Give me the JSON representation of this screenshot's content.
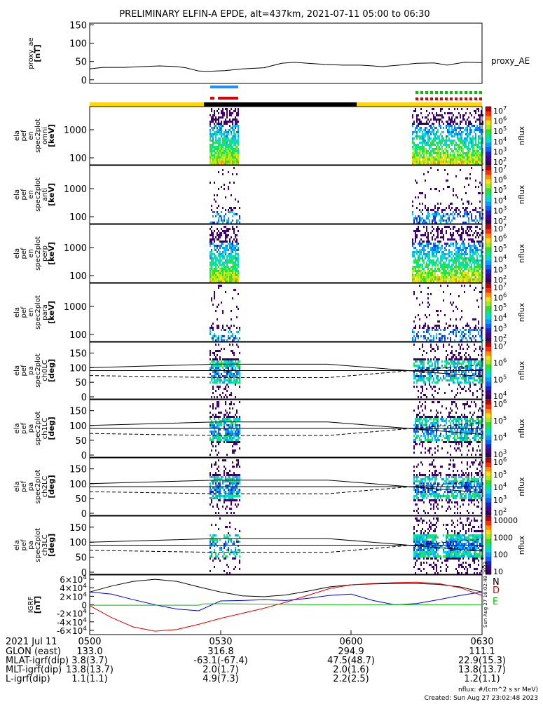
{
  "title": "PRELIMINARY ELFIN-A EPDE, alt=437km, 2021-07-11 05:00 to 06:30",
  "chart_data": [
    {
      "type": "line",
      "id": "proxy_ae",
      "ylabel": [
        "proxy_ae",
        "[nT]"
      ],
      "series_label": "proxy_AE",
      "yticks": [
        "0",
        "50",
        "100",
        "150"
      ],
      "ylim": [
        -10,
        155
      ],
      "xlim": [
        0,
        90
      ],
      "series": [
        {
          "x": [
            0,
            3,
            8,
            12,
            16,
            20,
            22,
            25,
            27,
            31,
            35,
            40,
            44,
            47,
            50,
            54,
            58,
            62,
            65,
            67,
            71,
            75,
            79,
            82,
            86,
            90
          ],
          "y": [
            30,
            34,
            34,
            36,
            38,
            36,
            33,
            24,
            23,
            25,
            30,
            33,
            45,
            48,
            45,
            42,
            40,
            40,
            38,
            36,
            40,
            45,
            46,
            40,
            48,
            47
          ]
        }
      ]
    },
    {
      "type": "heatmap",
      "id": "en_omni",
      "ylabel": [
        "ela",
        "pef",
        "en",
        "spec2plot",
        "omni",
        "[keV]"
      ],
      "yticks": [
        "100",
        "1000"
      ],
      "colorbar_ticks": [
        "10^2",
        "10^3",
        "10^4",
        "10^5",
        "10^6",
        "10^7"
      ],
      "colorbar_label": "nflux"
    },
    {
      "type": "heatmap",
      "id": "en_anti",
      "ylabel": [
        "ela",
        "pef",
        "en",
        "spec2plot",
        "anti",
        "[keV]"
      ],
      "yticks": [
        "100",
        "1000"
      ],
      "colorbar_ticks": [
        "10^2",
        "10^3",
        "10^4",
        "10^5",
        "10^6",
        "10^7"
      ],
      "colorbar_label": "nflux"
    },
    {
      "type": "heatmap",
      "id": "en_perp",
      "ylabel": [
        "ela",
        "pef",
        "en",
        "spec2plot",
        "perp",
        "[keV]"
      ],
      "yticks": [
        "100",
        "1000"
      ],
      "colorbar_ticks": [
        "10^2",
        "10^3",
        "10^4",
        "10^5",
        "10^6",
        "10^7"
      ],
      "colorbar_label": "nflux"
    },
    {
      "type": "heatmap",
      "id": "en_para",
      "ylabel": [
        "ela",
        "pef",
        "en",
        "spec2plot",
        "para",
        "[keV]"
      ],
      "yticks": [
        "100",
        "1000"
      ],
      "colorbar_ticks": [
        "10^2",
        "10^3",
        "10^4",
        "10^5",
        "10^6",
        "10^7"
      ],
      "colorbar_label": "nflux"
    },
    {
      "type": "heatmap",
      "id": "pa_ch0",
      "ylabel": [
        "ela",
        "pef",
        "pa",
        "spec2plot",
        "ch0LC",
        "[deg]"
      ],
      "yticks": [
        "0",
        "50",
        "100",
        "150"
      ],
      "colorbar_ticks": [
        "10^4",
        "10^5",
        "10^6",
        "10^7"
      ],
      "colorbar_label": "nflux"
    },
    {
      "type": "heatmap",
      "id": "pa_ch1",
      "ylabel": [
        "ela",
        "pef",
        "pa",
        "spec2plot",
        "ch1LC",
        "[deg]"
      ],
      "yticks": [
        "0",
        "50",
        "100",
        "150"
      ],
      "colorbar_ticks": [
        "10^3",
        "10^4",
        "10^5",
        "10^6"
      ],
      "colorbar_label": "nflux"
    },
    {
      "type": "heatmap",
      "id": "pa_ch2",
      "ylabel": [
        "ela",
        "pef",
        "pa",
        "spec2plot",
        "ch2LC",
        "[deg]"
      ],
      "yticks": [
        "0",
        "50",
        "100",
        "150"
      ],
      "colorbar_ticks": [
        "10^2",
        "10^3",
        "10^4",
        "10^5",
        "10^6"
      ],
      "colorbar_label": "nflux"
    },
    {
      "type": "heatmap",
      "id": "pa_ch3",
      "ylabel": [
        "ela",
        "pef",
        "pa",
        "spec2plot",
        "ch3LC",
        "[deg]"
      ],
      "yticks": [
        "0",
        "50",
        "100",
        "150"
      ],
      "colorbar_ticks": [
        "10",
        "100",
        "1000",
        "10000"
      ],
      "colorbar_label": "nflux"
    },
    {
      "type": "line",
      "id": "igrf",
      "ylabel": [
        "IGRF",
        "[nT]"
      ],
      "yticks": [
        "-6×10^4",
        "-4×10^4",
        "-2×10^4",
        "0",
        "2×10^4",
        "4×10^4",
        "6×10^4"
      ],
      "ylim": [
        -70000,
        70000
      ],
      "xlim": [
        0,
        90
      ],
      "series": [
        {
          "name": "N",
          "color": "#000000",
          "x": [
            0,
            5,
            10,
            15,
            20,
            25,
            30,
            35,
            40,
            45,
            50,
            55,
            60,
            65,
            70,
            75,
            80,
            85,
            90
          ],
          "y": [
            30000,
            44000,
            55000,
            60000,
            55000,
            42000,
            30000,
            21000,
            19000,
            23000,
            32000,
            42000,
            47000,
            49000,
            50000,
            50000,
            48000,
            42000,
            30000
          ]
        },
        {
          "name": "D",
          "color": "#e00000",
          "x": [
            0,
            5,
            10,
            15,
            20,
            25,
            30,
            35,
            40,
            45,
            50,
            55,
            60,
            65,
            70,
            75,
            80,
            85,
            90
          ],
          "y": [
            -2000,
            -30000,
            -52000,
            -62000,
            -58000,
            -46000,
            -32000,
            -20000,
            -8000,
            6000,
            22000,
            38000,
            47000,
            50000,
            52000,
            53000,
            50000,
            40000,
            22000
          ]
        },
        {
          "name": "",
          "color": "#0000e0",
          "x": [
            0,
            5,
            10,
            15,
            20,
            25,
            30,
            35,
            40,
            45,
            50,
            55,
            60,
            65,
            70,
            75,
            80,
            85,
            90
          ],
          "y": [
            30000,
            25000,
            12000,
            0,
            -10000,
            -14000,
            9000,
            10000,
            12000,
            10000,
            15000,
            22000,
            25000,
            10000,
            0,
            3000,
            12000,
            22000,
            30000
          ]
        },
        {
          "name": "E",
          "color": "#00c000",
          "x": [
            0,
            10,
            20,
            25,
            26,
            30,
            40,
            50,
            60,
            70,
            80,
            90
          ],
          "y": [
            -1000,
            -1000,
            -1000,
            -1000,
            2000,
            2500,
            1500,
            500,
            500,
            300,
            300,
            500
          ]
        }
      ]
    }
  ],
  "x_axis": {
    "ticks": [
      "0500",
      "0530",
      "0600",
      "0630"
    ],
    "rows": [
      {
        "label": "2021 Jul 11",
        "values": [
          "",
          "",
          "",
          ""
        ]
      },
      {
        "label": "GLON (east)",
        "values": [
          "133.0",
          "316.8",
          "294.9",
          "111.1"
        ]
      },
      {
        "label": "MLAT-igrf(dip)",
        "values": [
          "3.8(3.7)",
          "-63.1(-67.4)",
          "47.5(48.7)",
          "22.9(15.3)"
        ]
      },
      {
        "label": "MLT-igrf(dip)",
        "values": [
          "13.8(13.7)",
          "2.0(1.7)",
          "2.0(1.6)",
          "13.8(13.7)"
        ]
      },
      {
        "label": "L-igrf(dip)",
        "values": [
          "1.1(1.1)",
          "4.9(7.3)",
          "2.2(2.5)",
          "1.2(1.1)"
        ]
      }
    ]
  },
  "footer": {
    "units": "nflux: #/(cm^2 s sr MeV)",
    "created": "Created: Sun Aug 27 23:02:48 2023",
    "side_stamp": "Sun Aug 27 16:02:48 2023"
  },
  "colors": {
    "day_bar": "#ffd700",
    "night_bar": "#000000",
    "marker_blue": "#1e90ff",
    "marker_red": "#e00000",
    "marker_green": "#00c000"
  }
}
